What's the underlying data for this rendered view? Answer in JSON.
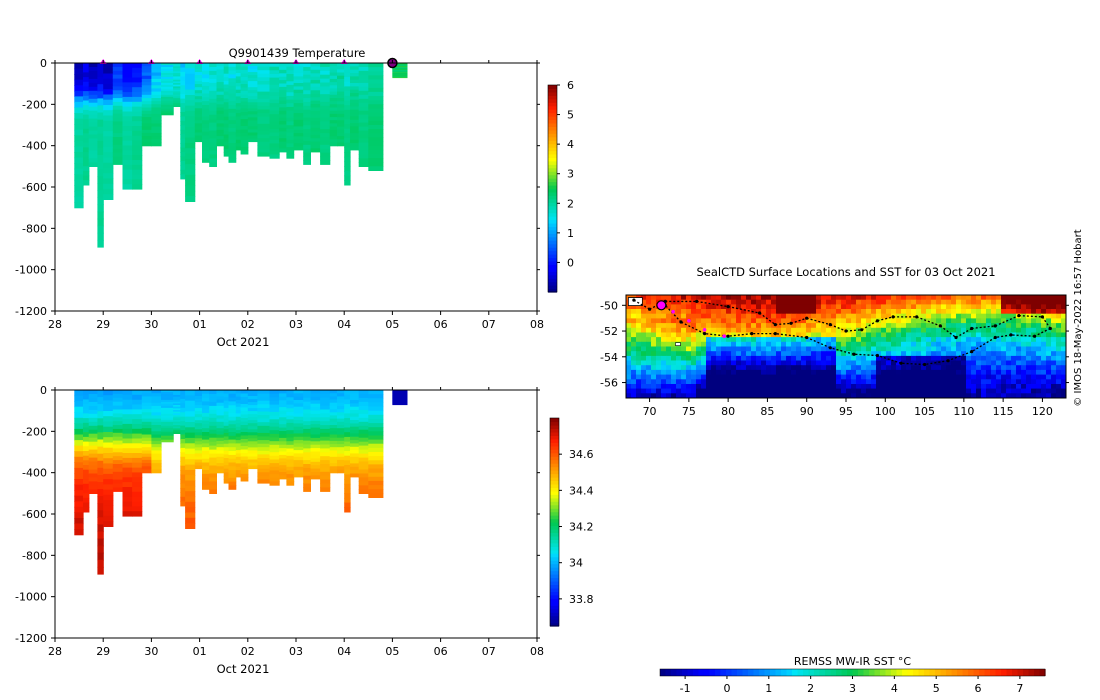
{
  "chart_data": [
    {
      "type": "heatmap",
      "name": "temperature-section",
      "title": "Q9901439  Temperature",
      "xlabel": "Oct 2021",
      "ylabel": "",
      "x_tick_labels": [
        "28",
        "29",
        "30",
        "01",
        "02",
        "03",
        "04",
        "05",
        "06",
        "07",
        "08"
      ],
      "xlim_days": [
        0,
        10
      ],
      "y_ticks": [
        0,
        -200,
        -400,
        -600,
        -800,
        -1000,
        -1200
      ],
      "ylim": [
        -1200,
        0
      ],
      "colorbar": {
        "range": [
          -1,
          6
        ],
        "ticks": [
          0,
          1,
          2,
          3,
          4,
          5,
          6
        ]
      },
      "profile_markers_day": [
        1,
        2,
        3,
        4,
        5,
        6
      ],
      "last_profile_day": 7,
      "surface_value": -0.5,
      "deep_value": 2.1,
      "profiles": [
        {
          "x": 0.4,
          "w": 0.18,
          "depth": 700,
          "s": -0.5,
          "d": 2.0
        },
        {
          "x": 0.58,
          "w": 0.12,
          "depth": 590,
          "s": -0.4,
          "d": 2.1
        },
        {
          "x": 0.7,
          "w": 0.18,
          "depth": 500,
          "s": -0.6,
          "d": 2.0
        },
        {
          "x": 0.88,
          "w": 0.12,
          "depth": 890,
          "s": -0.5,
          "d": 2.1
        },
        {
          "x": 1.0,
          "w": 0.2,
          "depth": 660,
          "s": -0.7,
          "d": 2.0
        },
        {
          "x": 1.2,
          "w": 0.2,
          "depth": 490,
          "s": 0.2,
          "d": 2.2
        },
        {
          "x": 1.4,
          "w": 0.2,
          "depth": 610,
          "s": -0.3,
          "d": 2.0
        },
        {
          "x": 1.6,
          "w": 0.2,
          "depth": 610,
          "s": 0.0,
          "d": 2.1
        },
        {
          "x": 1.8,
          "w": 0.2,
          "depth": 400,
          "s": 0.5,
          "d": 2.3
        },
        {
          "x": 2.0,
          "w": 0.2,
          "depth": 400,
          "s": 1.2,
          "d": 2.3
        },
        {
          "x": 2.2,
          "w": 0.25,
          "depth": 250,
          "s": 1.5,
          "d": 2.4
        },
        {
          "x": 2.45,
          "w": 0.15,
          "depth": 210,
          "s": 1.6,
          "d": 2.4
        },
        {
          "x": 2.6,
          "w": 0.1,
          "depth": 560,
          "s": 1.3,
          "d": 2.1
        },
        {
          "x": 2.7,
          "w": 0.2,
          "depth": 670,
          "s": 1.4,
          "d": 2.2
        },
        {
          "x": 2.9,
          "w": 0.15,
          "depth": 380,
          "s": 1.6,
          "d": 2.3
        },
        {
          "x": 3.05,
          "w": 0.15,
          "depth": 480,
          "s": 1.5,
          "d": 2.2
        },
        {
          "x": 3.2,
          "w": 0.15,
          "depth": 500,
          "s": 1.6,
          "d": 2.2
        },
        {
          "x": 3.35,
          "w": 0.15,
          "depth": 400,
          "s": 1.7,
          "d": 2.3
        },
        {
          "x": 3.5,
          "w": 0.1,
          "depth": 450,
          "s": 1.7,
          "d": 2.3
        },
        {
          "x": 3.6,
          "w": 0.15,
          "depth": 480,
          "s": 1.6,
          "d": 2.2
        },
        {
          "x": 3.75,
          "w": 0.1,
          "depth": 420,
          "s": 1.7,
          "d": 2.3
        },
        {
          "x": 3.85,
          "w": 0.15,
          "depth": 440,
          "s": 1.7,
          "d": 2.3
        },
        {
          "x": 4.0,
          "w": 0.2,
          "depth": 380,
          "s": 1.6,
          "d": 2.3
        },
        {
          "x": 4.2,
          "w": 0.25,
          "depth": 450,
          "s": 1.7,
          "d": 2.2
        },
        {
          "x": 4.45,
          "w": 0.2,
          "depth": 460,
          "s": 1.8,
          "d": 2.2
        },
        {
          "x": 4.65,
          "w": 0.15,
          "depth": 430,
          "s": 1.8,
          "d": 2.3
        },
        {
          "x": 4.8,
          "w": 0.15,
          "depth": 460,
          "s": 1.7,
          "d": 2.2
        },
        {
          "x": 4.95,
          "w": 0.2,
          "depth": 420,
          "s": 1.8,
          "d": 2.3
        },
        {
          "x": 5.15,
          "w": 0.15,
          "depth": 490,
          "s": 1.7,
          "d": 2.2
        },
        {
          "x": 5.3,
          "w": 0.2,
          "depth": 430,
          "s": 1.8,
          "d": 2.3
        },
        {
          "x": 5.5,
          "w": 0.2,
          "depth": 490,
          "s": 1.8,
          "d": 2.2
        },
        {
          "x": 5.7,
          "w": 0.15,
          "depth": 400,
          "s": 1.8,
          "d": 2.3
        },
        {
          "x": 5.85,
          "w": 0.15,
          "depth": 400,
          "s": 1.9,
          "d": 2.3
        },
        {
          "x": 6.0,
          "w": 0.12,
          "depth": 590,
          "s": 1.8,
          "d": 2.2
        },
        {
          "x": 6.12,
          "w": 0.18,
          "depth": 420,
          "s": 1.9,
          "d": 2.3
        },
        {
          "x": 6.3,
          "w": 0.2,
          "depth": 500,
          "s": 1.9,
          "d": 2.2
        },
        {
          "x": 6.5,
          "w": 0.3,
          "depth": 520,
          "s": 1.9,
          "d": 2.3
        },
        {
          "x": 7.0,
          "w": 0.3,
          "depth": 70,
          "s": 2.4,
          "d": 2.5
        }
      ]
    },
    {
      "type": "heatmap",
      "name": "salinity-section",
      "title": "",
      "xlabel": "Oct 2021",
      "ylabel": "",
      "x_tick_labels": [
        "28",
        "29",
        "30",
        "01",
        "02",
        "03",
        "04",
        "05",
        "06",
        "07",
        "08"
      ],
      "xlim_days": [
        0,
        10
      ],
      "y_ticks": [
        0,
        -200,
        -400,
        -600,
        -800,
        -1000,
        -1200
      ],
      "ylim": [
        -1200,
        0
      ],
      "colorbar": {
        "range": [
          33.65,
          34.8
        ],
        "ticks": [
          33.8,
          34,
          34.2,
          34.4,
          34.6
        ],
        "tick_labels": [
          "33.8",
          "34",
          "34.2",
          "34.4",
          "34.6"
        ]
      },
      "surface_value": 33.95,
      "deep_value": 34.72,
      "last_profile_value": 33.7
    },
    {
      "type": "heatmap",
      "name": "sst-map",
      "title": "SealCTD Surface Locations and SST for 03 Oct 2021",
      "xlabel": "",
      "ylabel": "",
      "x_ticks": [
        70,
        75,
        80,
        85,
        90,
        95,
        100,
        105,
        110,
        115,
        120
      ],
      "xlim": [
        67,
        123
      ],
      "y_ticks": [
        -50,
        -52,
        -54,
        -56
      ],
      "ylim": [
        -57.2,
        -49.2
      ],
      "colorbar": {
        "label": "REMSS MW-IR SST °C",
        "range": [
          -1.6,
          7.6
        ],
        "ticks": [
          -1,
          0,
          1,
          2,
          3,
          4,
          5,
          6,
          7
        ]
      },
      "track_points": [
        [
          68,
          -49.6
        ],
        [
          70,
          -50.3
        ],
        [
          72,
          -49.7
        ],
        [
          76,
          -49.7
        ],
        [
          80,
          -50.1
        ],
        [
          84,
          -50.6
        ],
        [
          86,
          -51.5
        ],
        [
          88,
          -51.4
        ],
        [
          90,
          -51.0
        ],
        [
          93,
          -51.5
        ],
        [
          95,
          -52.0
        ],
        [
          97,
          -51.9
        ],
        [
          99,
          -51.2
        ],
        [
          101,
          -50.9
        ],
        [
          104,
          -50.9
        ],
        [
          107,
          -51.6
        ],
        [
          109,
          -52.5
        ],
        [
          111,
          -51.8
        ],
        [
          114,
          -51.6
        ],
        [
          117,
          -50.8
        ],
        [
          120,
          -50.9
        ],
        [
          121,
          -51.8
        ],
        [
          119,
          -52.4
        ],
        [
          116,
          -52.3
        ],
        [
          114,
          -52.5
        ],
        [
          111,
          -53.6
        ],
        [
          108,
          -54.3
        ],
        [
          105,
          -54.6
        ],
        [
          102,
          -54.5
        ],
        [
          99,
          -53.9
        ],
        [
          96,
          -53.8
        ],
        [
          93,
          -53.3
        ],
        [
          90,
          -52.5
        ],
        [
          86,
          -52.2
        ],
        [
          83,
          -52.2
        ],
        [
          80,
          -52.4
        ],
        [
          77,
          -52.2
        ],
        [
          74,
          -51.3
        ],
        [
          72,
          -50.0
        ]
      ],
      "recent_track_points": [
        [
          71.5,
          -50.0
        ],
        [
          73,
          -50.5
        ],
        [
          75,
          -51.2
        ],
        [
          77,
          -51.9
        ],
        [
          79.5,
          -52.4
        ]
      ],
      "current_location": [
        71.5,
        -50.0
      ]
    }
  ],
  "side_stamp": "© IMOS 18-May-2022 16:57 Hobart"
}
